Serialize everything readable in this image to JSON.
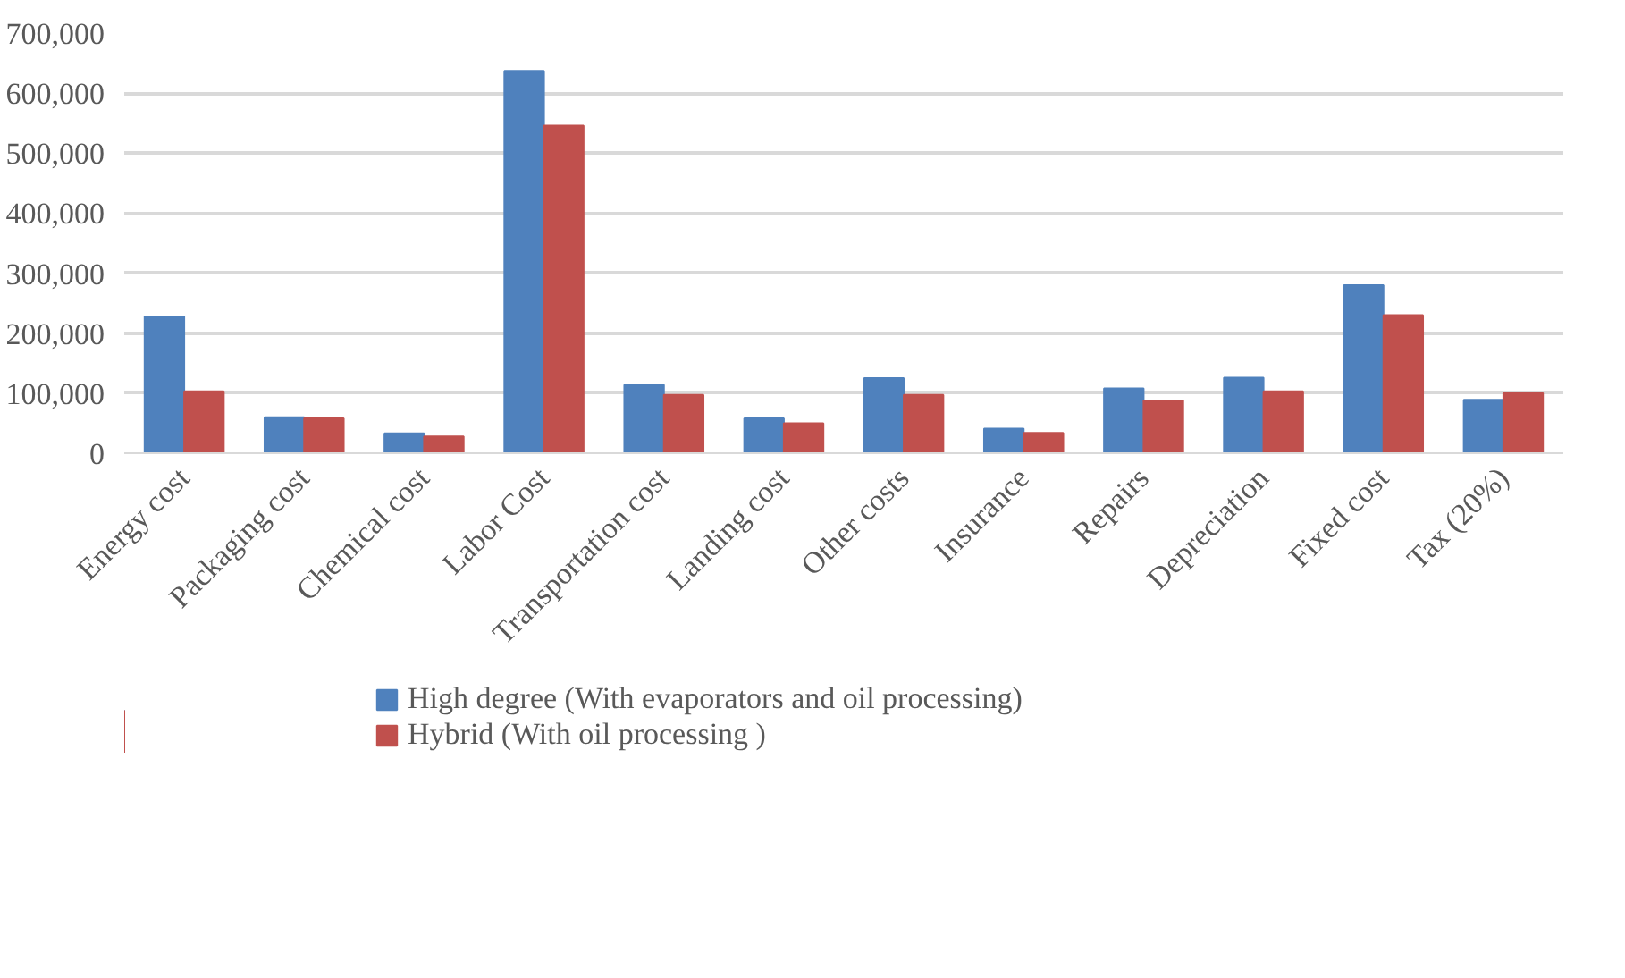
{
  "chart_data": {
    "type": "bar",
    "categories": [
      "Energy cost",
      "Packaging cost",
      "Chemical cost",
      "Labor Cost",
      "Transportation cost",
      "Landing cost",
      "Other costs",
      "Insurance",
      "Repairs",
      "Depreciation",
      "Fixed cost",
      "Tax (20%)"
    ],
    "series": [
      {
        "name": "High degree (With evaporators and oil processing)",
        "color": "#4f81bd",
        "values": [
          228000,
          60000,
          33000,
          637000,
          114000,
          58000,
          125000,
          41000,
          108000,
          126000,
          280000,
          89000
        ]
      },
      {
        "name": "Hybrid (With oil processing )",
        "color": "#c0504d",
        "values": [
          103000,
          58000,
          28000,
          546000,
          97000,
          50000,
          97000,
          34000,
          88000,
          103000,
          230000,
          100000
        ]
      }
    ],
    "ylim": [
      0,
      700000
    ],
    "yticks": [
      {
        "value": 0,
        "label": "0"
      },
      {
        "value": 100000,
        "label": "100,000"
      },
      {
        "value": 200000,
        "label": "200,000"
      },
      {
        "value": 300000,
        "label": "300,000"
      },
      {
        "value": 400000,
        "label": "400,000"
      },
      {
        "value": 500000,
        "label": "500,000"
      },
      {
        "value": 600000,
        "label": "600,000"
      },
      {
        "value": 700000,
        "label": "700,000"
      }
    ],
    "grid": "y",
    "legend": "bottom"
  }
}
